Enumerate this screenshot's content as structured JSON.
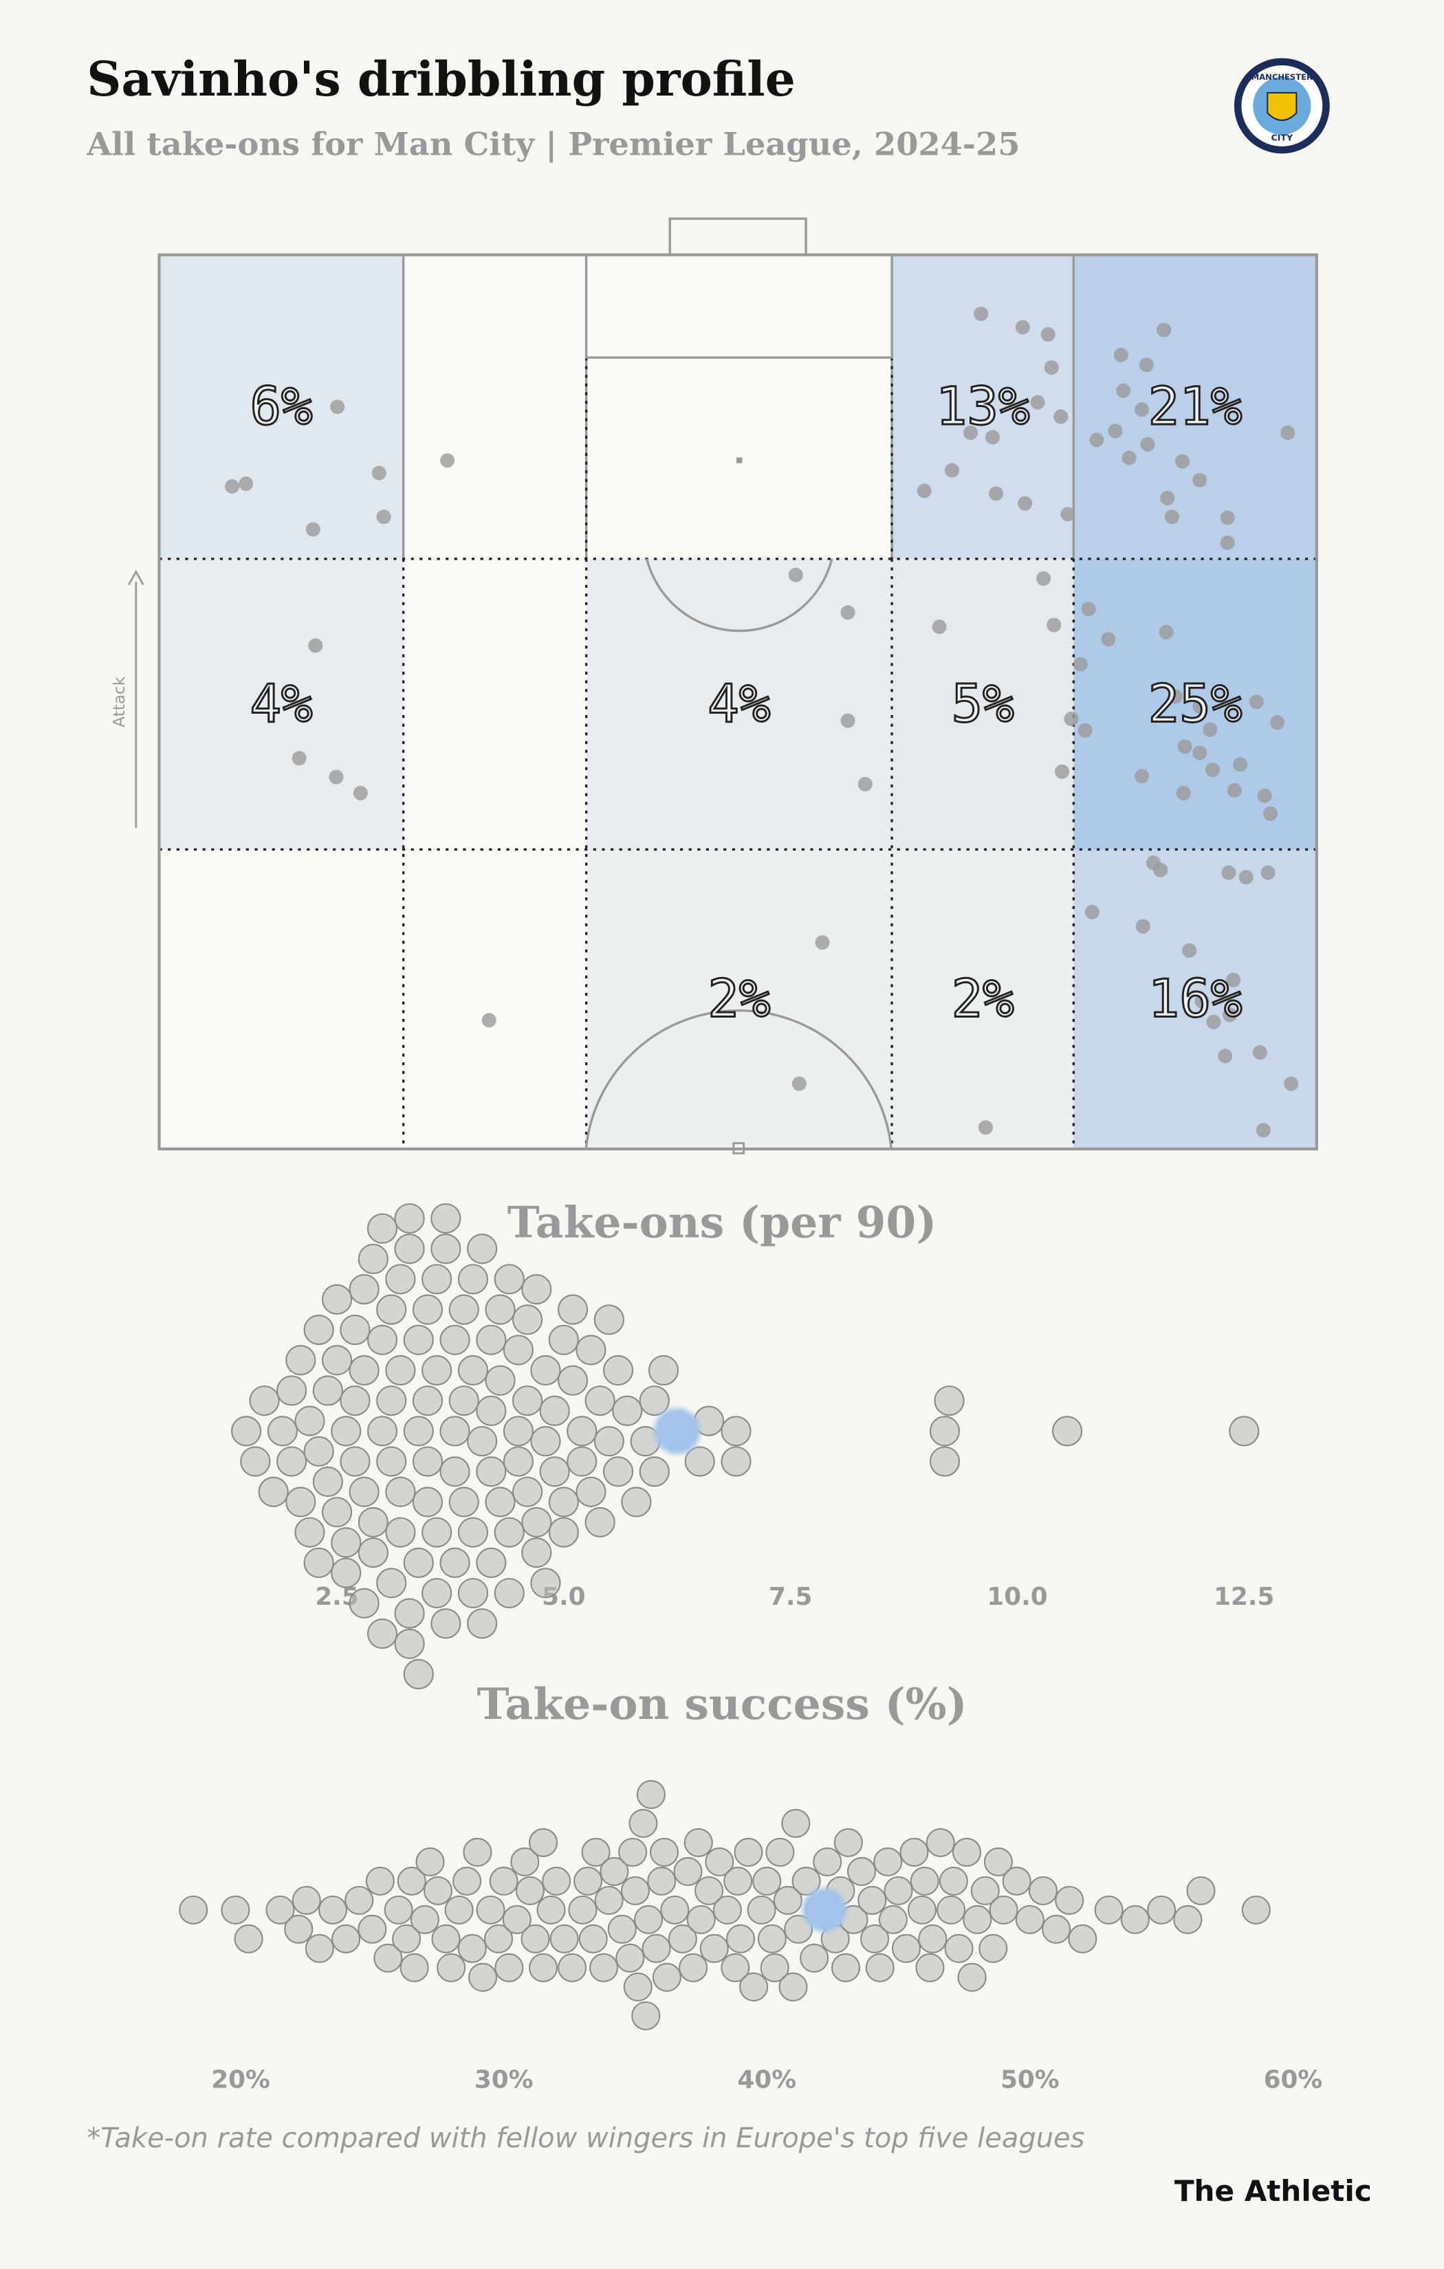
{
  "header": {
    "title": "Savinho's dribbling profile",
    "subtitle": "All take-ons for Man City | Premier League, 2024-25",
    "footnote": "*Take-on rate compared with fellow wingers in Europe's top five leagues",
    "brand": "The Athletic"
  },
  "badge": {
    "top": "MANCHESTER",
    "bottom": "CITY"
  },
  "pitch": {
    "attack_label": "Attack",
    "zones": [
      [
        6,
        null,
        null,
        13,
        21
      ],
      [
        4,
        null,
        4,
        5,
        25
      ],
      [
        null,
        null,
        2,
        2,
        16
      ]
    ],
    "zone_labels": [
      [
        "6%",
        null,
        null,
        "13%",
        "21%"
      ],
      [
        "4%",
        null,
        "4%",
        "5%",
        "25%"
      ],
      [
        null,
        null,
        "2%",
        "2%",
        "16%"
      ]
    ],
    "color_scale": {
      "domain": [
        0,
        25
      ],
      "colors": [
        "#f1f2f0",
        "#afcae8"
      ],
      "empty": "#f9f9f6"
    },
    "xlim": [
      0,
      100
    ],
    "ylim": [
      0,
      100
    ],
    "dot_color": "#9a9a9a",
    "takeons": {
      "x": [
        15.4,
        6.3,
        7.5,
        19,
        13.3,
        19.4,
        24.9,
        71,
        74.6,
        76.8,
        77.1,
        75.9,
        77.9,
        72,
        70.1,
        68.5,
        66.1,
        72.3,
        74.8,
        78.5,
        83.1,
        86.8,
        85.3,
        83.3,
        84.9,
        81,
        82.6,
        83.8,
        85.4,
        88.4,
        89.9,
        87.1,
        87.5,
        92.3,
        92.3,
        97.5,
        13.5,
        12.1,
        15.3,
        17.4,
        55,
        59.5,
        59.5,
        61,
        76.4,
        67.4,
        77.3,
        78.8,
        78,
        80.3,
        82,
        87,
        79.6,
        80,
        87.8,
        89.9,
        94.8,
        96.6,
        90.8,
        88.6,
        89.9,
        93.4,
        84.9,
        91,
        92.9,
        88.5,
        95.5,
        96,
        28.5,
        57.3,
        55.3,
        71.4,
        85.9,
        86.5,
        92.4,
        93.9,
        95.8,
        80.6,
        85,
        89,
        92.8,
        90.1,
        92.5,
        91.1,
        95.1,
        92.1,
        97.8,
        95.4
      ],
      "y": [
        17,
        25.9,
        25.6,
        24.4,
        30.7,
        29.3,
        23,
        6.6,
        8.1,
        8.9,
        12.6,
        16.5,
        18.1,
        20.4,
        19.9,
        24.1,
        26.4,
        26.7,
        27.8,
        29,
        11.2,
        8.4,
        12.3,
        15.2,
        17.3,
        20.7,
        19.7,
        22.7,
        21.2,
        23.1,
        25.2,
        27.2,
        29.3,
        29.4,
        32.2,
        19.9,
        43.7,
        56.3,
        58.4,
        60.2,
        35.8,
        40,
        52.1,
        59.2,
        36.2,
        41.6,
        41.4,
        51.9,
        57.8,
        39.6,
        43,
        42.2,
        45.8,
        53.2,
        49.4,
        50.5,
        50,
        52.3,
        53.1,
        55,
        55.7,
        57,
        58.3,
        57.6,
        59.9,
        60.2,
        60.5,
        62.5,
        85.6,
        76.9,
        92.7,
        97.6,
        68,
        68.8,
        69.1,
        69.6,
        69.1,
        73.5,
        75.1,
        77.8,
        81.1,
        83.5,
        85,
        85.8,
        89.2,
        89.6,
        92.7,
        97.9
      ]
    }
  },
  "chart_data": [
    {
      "type": "beeswarm",
      "title": "Take-ons (per 90)",
      "xlim": [
        0.54,
        13.3
      ],
      "xticks": [
        2.5,
        {
          "value": 5,
          "label": "5.0"
        },
        7.5,
        {
          "value": 10,
          "label": "10.0"
        },
        12.5
      ],
      "highlight": 6.25,
      "highlight_color": "#a3c4ea",
      "color": "#b9b9b4",
      "values": [
        1.5,
        1.6,
        1.7,
        1.8,
        1.9,
        2.0,
        2.0,
        2.1,
        2.1,
        2.2,
        2.2,
        2.3,
        2.3,
        2.3,
        2.4,
        2.4,
        2.5,
        2.5,
        2.5,
        2.6,
        2.6,
        2.6,
        2.7,
        2.7,
        2.7,
        2.8,
        2.8,
        2.8,
        2.8,
        2.9,
        2.9,
        2.9,
        3.0,
        3.0,
        3.0,
        3.0,
        3.1,
        3.1,
        3.1,
        3.1,
        3.2,
        3.2,
        3.2,
        3.2,
        3.3,
        3.3,
        3.3,
        3.3,
        3.4,
        3.4,
        3.4,
        3.4,
        3.5,
        3.5,
        3.5,
        3.5,
        3.6,
        3.6,
        3.6,
        3.6,
        3.7,
        3.7,
        3.7,
        3.8,
        3.8,
        3.8,
        3.8,
        3.9,
        3.9,
        3.9,
        4.0,
        4.0,
        4.0,
        4.0,
        4.1,
        4.1,
        4.1,
        4.2,
        4.2,
        4.2,
        4.2,
        4.3,
        4.3,
        4.3,
        4.4,
        4.4,
        4.4,
        4.5,
        4.5,
        4.5,
        4.6,
        4.6,
        4.6,
        4.7,
        4.7,
        4.7,
        4.8,
        4.8,
        4.8,
        4.9,
        4.9,
        5.0,
        5.0,
        5.0,
        5.1,
        5.1,
        5.2,
        5.2,
        5.3,
        5.3,
        5.4,
        5.4,
        5.5,
        5.5,
        5.6,
        5.6,
        5.7,
        5.8,
        5.9,
        6.0,
        6.0,
        6.1,
        6.3,
        6.5,
        6.6,
        6.9,
        6.9,
        9.2,
        9.2,
        9.25,
        10.55,
        12.5
      ]
    },
    {
      "type": "beeswarm",
      "title": "Take-on success (%)",
      "xlim": [
        16.9,
        60.9
      ],
      "xticks": [
        {
          "value": 20,
          "label": "20%"
        },
        {
          "value": 30,
          "label": "30%"
        },
        {
          "value": 40,
          "label": "40%"
        },
        {
          "value": 50,
          "label": "50%"
        },
        {
          "value": 60,
          "label": "60%"
        }
      ],
      "highlight": 42.2,
      "highlight_color": "#a3c4ea",
      "color": "#b9b9b4",
      "values": [
        18.2,
        19.8,
        20.3,
        21.5,
        22.2,
        22.5,
        23.0,
        23.5,
        24.0,
        24.5,
        25.0,
        25.3,
        25.6,
        26.0,
        26.3,
        26.6,
        27.0,
        27.2,
        27.5,
        27.8,
        28.0,
        28.3,
        28.6,
        29.0,
        29.2,
        29.5,
        29.8,
        30.0,
        30.2,
        30.5,
        30.8,
        31.0,
        31.2,
        31.5,
        31.8,
        32.0,
        32.3,
        32.6,
        33.0,
        33.2,
        33.5,
        33.8,
        34.0,
        34.2,
        34.5,
        34.8,
        35.0,
        35.1,
        35.3,
        35.5,
        35.8,
        36.0,
        36.2,
        36.5,
        36.8,
        37.0,
        37.2,
        37.5,
        37.8,
        38.0,
        38.2,
        38.5,
        38.8,
        39.0,
        39.3,
        39.5,
        39.8,
        40.0,
        40.2,
        40.5,
        40.8,
        41.0,
        41.2,
        41.5,
        41.8,
        42.0,
        42.3,
        42.6,
        43.0,
        43.3,
        43.6,
        44.0,
        44.3,
        44.6,
        45.0,
        45.3,
        45.6,
        46.0,
        46.3,
        46.6,
        47.0,
        47.3,
        47.6,
        48.0,
        48.3,
        48.6,
        49.0,
        49.5,
        50.0,
        50.5,
        51.0,
        51.5,
        52.0,
        53.0,
        54.0,
        55.0,
        56.0,
        56.5,
        58.6,
        26.5,
        28.8,
        31.5,
        33.4,
        35.6,
        37.4,
        38.9,
        41.1,
        43.1,
        44.8,
        46.2,
        47.8,
        36.1,
        34.9,
        35.4,
        40.3,
        42.8,
        44.1,
        45.9,
        47.1,
        48.8
      ]
    }
  ]
}
